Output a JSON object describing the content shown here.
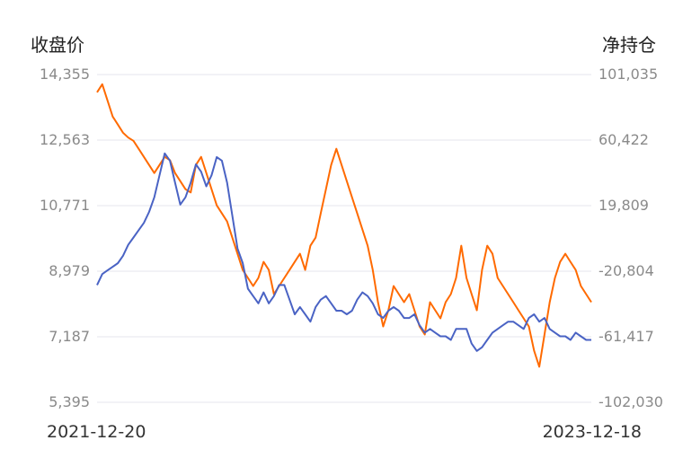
{
  "chart_data": {
    "type": "line",
    "left_axis_title": "收盘价",
    "right_axis_title": "净持仓",
    "left_ticks": [
      "14,355",
      "12,563",
      "10,771",
      "8,979",
      "7,187",
      "5,395"
    ],
    "right_ticks": [
      "101,035",
      "60,422",
      "19,809",
      "-20,804",
      "-61,417",
      "-102,030"
    ],
    "left_ylim": [
      5395,
      14355
    ],
    "right_ylim": [
      -102030,
      101035
    ],
    "x_start_label": "2021-12-20",
    "x_end_label": "2023-12-18",
    "grid": true,
    "series": [
      {
        "axis": "left",
        "color": "#4a63c4",
        "values": [
          8600,
          8900,
          9000,
          9100,
          9200,
          9400,
          9700,
          9900,
          10100,
          10300,
          10600,
          11000,
          11600,
          12200,
          12000,
          11400,
          10800,
          11000,
          11400,
          11900,
          11700,
          11300,
          11600,
          12100,
          12000,
          11400,
          10500,
          9600,
          9200,
          8500,
          8300,
          8100,
          8400,
          8100,
          8300,
          8600,
          8600,
          8200,
          7800,
          8000,
          7800,
          7600,
          8000,
          8200,
          8300,
          8100,
          7900,
          7900,
          7800,
          7900,
          8200,
          8400,
          8300,
          8100,
          7800,
          7700,
          7900,
          8000,
          7900,
          7700,
          7700,
          7800,
          7500,
          7300,
          7400,
          7300,
          7200,
          7200,
          7100,
          7400,
          7400,
          7400,
          7000,
          6800,
          6900,
          7100,
          7300,
          7400,
          7500,
          7600,
          7600,
          7500,
          7400,
          7700,
          7800,
          7600,
          7700,
          7400,
          7300,
          7200,
          7200,
          7100,
          7300,
          7200,
          7100,
          7100
        ]
      },
      {
        "axis": "right",
        "color": "#ff6a00",
        "values": [
          90000,
          95000,
          85000,
          75000,
          70000,
          65000,
          62000,
          60000,
          55000,
          50000,
          45000,
          40000,
          45000,
          50000,
          48000,
          40000,
          35000,
          30000,
          28000,
          45000,
          50000,
          40000,
          30000,
          20000,
          15000,
          10000,
          0,
          -10000,
          -20000,
          -25000,
          -30000,
          -25000,
          -15000,
          -20000,
          -35000,
          -30000,
          -25000,
          -20000,
          -15000,
          -10000,
          -20000,
          -5000,
          0,
          15000,
          30000,
          45000,
          55000,
          45000,
          35000,
          25000,
          15000,
          5000,
          -5000,
          -20000,
          -40000,
          -55000,
          -45000,
          -30000,
          -35000,
          -40000,
          -35000,
          -45000,
          -55000,
          -60000,
          -40000,
          -45000,
          -50000,
          -40000,
          -35000,
          -25000,
          -5000,
          -25000,
          -35000,
          -45000,
          -20000,
          -5000,
          -10000,
          -25000,
          -30000,
          -35000,
          -40000,
          -45000,
          -50000,
          -55000,
          -70000,
          -80000,
          -60000,
          -40000,
          -25000,
          -15000,
          -10000,
          -15000,
          -20000,
          -30000,
          -35000,
          -40000
        ]
      }
    ]
  }
}
